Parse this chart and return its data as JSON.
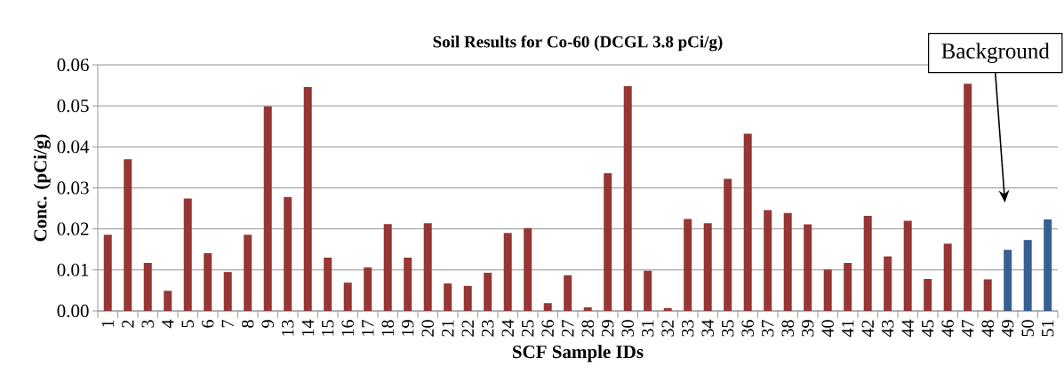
{
  "chart_data": {
    "type": "bar",
    "title": "Soil Results for Co-60 (DCGL 3.8 pCi/g)",
    "xlabel": "SCF Sample IDs",
    "ylabel": "Conc. (pCi/g)",
    "categories": [
      "1",
      "2",
      "3",
      "4",
      "5",
      "6",
      "7",
      "8",
      "9",
      "13",
      "14",
      "15",
      "16",
      "17",
      "18",
      "19",
      "20",
      "21",
      "22",
      "23",
      "24",
      "25",
      "26",
      "27",
      "28",
      "29",
      "30",
      "31",
      "32",
      "33",
      "34",
      "35",
      "36",
      "37",
      "38",
      "39",
      "40",
      "41",
      "42",
      "43",
      "44",
      "45",
      "46",
      "47",
      "48",
      "49",
      "50",
      "51"
    ],
    "values": [
      0.0186,
      0.037,
      0.0117,
      0.0049,
      0.0274,
      0.0141,
      0.0095,
      0.0186,
      0.0499,
      0.0278,
      0.0546,
      0.013,
      0.0069,
      0.0106,
      0.0212,
      0.013,
      0.0214,
      0.0067,
      0.0061,
      0.0093,
      0.019,
      0.0202,
      0.0019,
      0.0087,
      0.0009,
      0.0336,
      0.0548,
      0.0098,
      0.0007,
      0.0224,
      0.0214,
      0.0322,
      0.0432,
      0.0246,
      0.0239,
      0.0211,
      0.0101,
      0.0117,
      0.0232,
      0.0133,
      0.022,
      0.0078,
      0.0164,
      0.0554,
      0.0077,
      0.0149,
      0.0173,
      0.0223
    ],
    "colors": [
      "#953735",
      "#953735",
      "#953735",
      "#953735",
      "#953735",
      "#953735",
      "#953735",
      "#953735",
      "#953735",
      "#953735",
      "#953735",
      "#953735",
      "#953735",
      "#953735",
      "#953735",
      "#953735",
      "#953735",
      "#953735",
      "#953735",
      "#953735",
      "#953735",
      "#953735",
      "#953735",
      "#953735",
      "#953735",
      "#953735",
      "#953735",
      "#953735",
      "#953735",
      "#953735",
      "#953735",
      "#953735",
      "#953735",
      "#953735",
      "#953735",
      "#953735",
      "#953735",
      "#953735",
      "#953735",
      "#953735",
      "#953735",
      "#953735",
      "#953735",
      "#953735",
      "#953735",
      "#376092",
      "#376092",
      "#376092"
    ],
    "ylim": [
      0,
      0.06
    ],
    "yticks": [
      {
        "value": 0,
        "label": "0.00"
      },
      {
        "value": 0.01,
        "label": "0.01"
      },
      {
        "value": 0.02,
        "label": "0.02"
      },
      {
        "value": 0.03,
        "label": "0.03"
      },
      {
        "value": 0.04,
        "label": "0.04"
      },
      {
        "value": 0.05,
        "label": "0.05"
      },
      {
        "value": 0.06,
        "label": "0.06"
      }
    ],
    "grid": "y",
    "annotations": [
      "Background"
    ]
  }
}
